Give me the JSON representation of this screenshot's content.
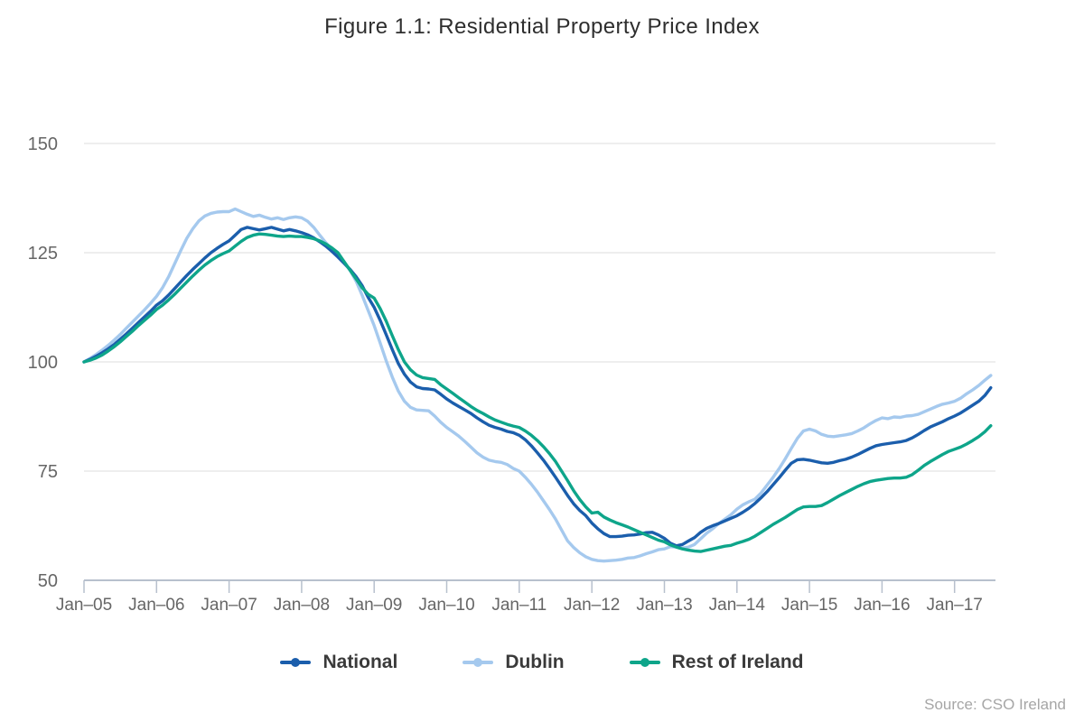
{
  "title": "Figure 1.1: Residential Property Price Index",
  "source": "Source: CSO Ireland",
  "colors": {
    "national": "#1b5eac",
    "dublin": "#a5c9ee",
    "rest_of_ireland": "#0ea58a",
    "gridline": "#e4e4e4",
    "axis": "#b7c0cd",
    "tick_label": "#666666",
    "title_text": "#2e2e2e",
    "legend_text": "#3a3a3a",
    "source_text": "#a6a6a6"
  },
  "chart_data": {
    "type": "line",
    "title": "Figure 1.1: Residential Property Price Index",
    "xlabel": "",
    "ylabel": "",
    "x_unit": "month",
    "x_start": "Jan-2005",
    "x_end": "Jul-2017",
    "x_tick_labels": [
      "Jan–05",
      "Jan–06",
      "Jan–07",
      "Jan–08",
      "Jan–09",
      "Jan–10",
      "Jan–11",
      "Jan–12",
      "Jan–13",
      "Jan–14",
      "Jan–15",
      "Jan–16",
      "Jan–17"
    ],
    "y_tick_labels": [
      "50",
      "75",
      "100",
      "125",
      "150"
    ],
    "y_ticks": [
      50,
      75,
      100,
      125,
      150
    ],
    "ylim": [
      50,
      150
    ],
    "grid": "horizontal",
    "legend_position": "bottom",
    "series": [
      {
        "name": "National",
        "color": "#1b5eac",
        "values": [
          100.0,
          100.6,
          101.3,
          102.1,
          103.0,
          104.0,
          105.2,
          106.4,
          107.7,
          109.0,
          110.3,
          111.6,
          113.0,
          114.0,
          115.3,
          116.8,
          118.3,
          119.8,
          121.2,
          122.5,
          123.8,
          125.0,
          126.0,
          126.9,
          127.7,
          129.0,
          130.3,
          130.8,
          130.5,
          130.2,
          130.5,
          130.8,
          130.4,
          130.0,
          130.3,
          130.0,
          129.6,
          129.1,
          128.4,
          127.5,
          126.5,
          125.3,
          124.0,
          122.6,
          121.2,
          119.5,
          117.5,
          114.8,
          112.5,
          109.5,
          106.2,
          102.8,
          99.6,
          97.2,
          95.4,
          94.3,
          93.9,
          93.8,
          93.6,
          92.6,
          91.5,
          90.6,
          89.8,
          89.0,
          88.2,
          87.2,
          86.3,
          85.5,
          85.0,
          84.6,
          84.1,
          83.8,
          83.2,
          82.2,
          80.8,
          79.2,
          77.5,
          75.6,
          73.6,
          71.5,
          69.4,
          67.5,
          66.0,
          64.8,
          63.1,
          61.8,
          60.7,
          60.0,
          60.0,
          60.1,
          60.3,
          60.4,
          60.6,
          60.9,
          61.0,
          60.4,
          59.6,
          58.5,
          57.9,
          58.2,
          59.0,
          59.8,
          61.0,
          61.9,
          62.5,
          63.0,
          63.6,
          64.2,
          64.8,
          65.6,
          66.5,
          67.6,
          68.9,
          70.3,
          71.9,
          73.5,
          75.2,
          76.8,
          77.6,
          77.7,
          77.5,
          77.2,
          76.9,
          76.8,
          77.0,
          77.4,
          77.7,
          78.2,
          78.8,
          79.5,
          80.2,
          80.8,
          81.1,
          81.3,
          81.5,
          81.7,
          82.0,
          82.6,
          83.4,
          84.3,
          85.1,
          85.7,
          86.3,
          87.0,
          87.6,
          88.3,
          89.2,
          90.1,
          91.0,
          92.3,
          94.1
        ]
      },
      {
        "name": "Dublin",
        "color": "#a5c9ee",
        "values": [
          100.0,
          100.8,
          101.7,
          102.7,
          103.8,
          105.0,
          106.3,
          107.7,
          109.1,
          110.5,
          111.9,
          113.4,
          115.0,
          117.0,
          119.5,
          122.5,
          125.5,
          128.3,
          130.5,
          132.3,
          133.4,
          134.0,
          134.3,
          134.4,
          134.4,
          135.0,
          134.4,
          133.8,
          133.3,
          133.6,
          133.1,
          132.7,
          133.0,
          132.6,
          133.0,
          133.2,
          133.0,
          132.2,
          130.8,
          129.0,
          127.3,
          125.8,
          124.3,
          122.7,
          121.0,
          118.5,
          115.3,
          111.8,
          108.3,
          104.3,
          100.2,
          96.5,
          93.3,
          91.0,
          89.6,
          89.0,
          88.9,
          88.8,
          87.6,
          86.2,
          85.0,
          84.0,
          83.0,
          81.8,
          80.5,
          79.2,
          78.2,
          77.5,
          77.2,
          77.0,
          76.5,
          75.6,
          75.0,
          73.6,
          72.0,
          70.2,
          68.2,
          66.2,
          64.0,
          61.5,
          59.0,
          57.5,
          56.3,
          55.4,
          54.8,
          54.5,
          54.4,
          54.5,
          54.6,
          54.8,
          55.1,
          55.2,
          55.6,
          56.1,
          56.5,
          57.0,
          57.2,
          57.7,
          57.6,
          57.4,
          57.6,
          58.2,
          59.5,
          60.8,
          61.8,
          63.0,
          64.0,
          65.0,
          66.3,
          67.3,
          68.0,
          68.6,
          70.0,
          71.8,
          73.6,
          75.6,
          77.8,
          80.2,
          82.5,
          84.2,
          84.6,
          84.2,
          83.4,
          83.0,
          82.9,
          83.1,
          83.3,
          83.6,
          84.2,
          84.9,
          85.8,
          86.6,
          87.2,
          87.0,
          87.4,
          87.3,
          87.6,
          87.7,
          88.0,
          88.6,
          89.2,
          89.8,
          90.3,
          90.6,
          91.0,
          91.7,
          92.7,
          93.6,
          94.6,
          95.8,
          96.9
        ]
      },
      {
        "name": "Rest of Ireland",
        "color": "#0ea58a",
        "values": [
          100.0,
          100.4,
          100.9,
          101.6,
          102.5,
          103.5,
          104.6,
          105.8,
          107.0,
          108.3,
          109.5,
          110.7,
          112.0,
          113.0,
          114.2,
          115.5,
          116.9,
          118.3,
          119.7,
          121.0,
          122.2,
          123.2,
          124.1,
          124.8,
          125.4,
          126.5,
          127.6,
          128.5,
          129.0,
          129.3,
          129.2,
          129.0,
          128.8,
          128.7,
          128.8,
          128.7,
          128.7,
          128.5,
          128.2,
          127.7,
          127.0,
          126.1,
          125.0,
          123.0,
          121.0,
          119.0,
          117.0,
          115.5,
          114.6,
          112.2,
          109.3,
          106.0,
          102.8,
          100.0,
          98.2,
          97.0,
          96.4,
          96.2,
          96.0,
          94.8,
          93.8,
          92.8,
          91.8,
          90.8,
          89.8,
          88.9,
          88.2,
          87.4,
          86.7,
          86.2,
          85.7,
          85.3,
          85.0,
          84.2,
          83.2,
          82.0,
          80.6,
          79.0,
          77.2,
          75.0,
          72.8,
          70.5,
          68.5,
          66.8,
          65.4,
          65.6,
          64.5,
          63.8,
          63.2,
          62.7,
          62.2,
          61.6,
          61.0,
          60.4,
          59.8,
          59.2,
          58.8,
          58.1,
          57.6,
          57.2,
          56.9,
          56.7,
          56.6,
          56.9,
          57.2,
          57.5,
          57.8,
          58.0,
          58.5,
          58.9,
          59.4,
          60.1,
          61.0,
          61.9,
          62.8,
          63.6,
          64.4,
          65.3,
          66.2,
          66.8,
          66.9,
          66.9,
          67.1,
          67.8,
          68.6,
          69.4,
          70.1,
          70.8,
          71.5,
          72.1,
          72.6,
          72.9,
          73.1,
          73.3,
          73.4,
          73.4,
          73.6,
          74.2,
          75.2,
          76.3,
          77.2,
          78.0,
          78.8,
          79.5,
          80.0,
          80.5,
          81.2,
          82.0,
          82.9,
          84.0,
          85.4
        ]
      }
    ]
  },
  "legend": {
    "items": [
      {
        "label": "National"
      },
      {
        "label": "Dublin"
      },
      {
        "label": "Rest of Ireland"
      }
    ]
  }
}
